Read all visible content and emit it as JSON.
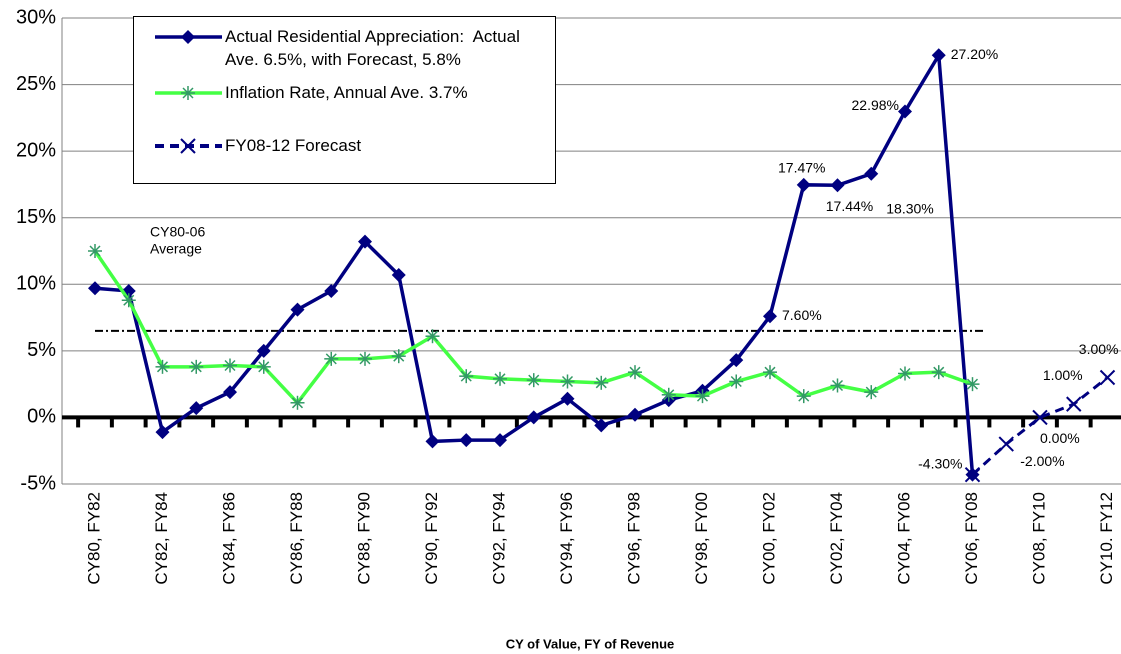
{
  "chart_data": {
    "type": "line",
    "x_label": "CY of Value, FY of Revenue",
    "categories": [
      "CY80, FY82",
      null,
      "CY82, FY84",
      null,
      "CY84, FY86",
      null,
      "CY86, FY88",
      null,
      "CY88, FY90",
      null,
      "CY90, FY92",
      null,
      "CY92, FY94",
      null,
      "CY94, FY96",
      null,
      "CY96, FY98",
      null,
      "CY98, FY00",
      null,
      "CY00, FY02",
      null,
      "CY02, FY04",
      null,
      "CY04, FY06",
      null,
      "CY06, FY08",
      null,
      "CY08, FY10",
      null,
      "CY10. FY12"
    ],
    "series": [
      {
        "name": "Actual Residential Appreciation:  Actual Ave. 6.5%, with Forecast, 5.8%",
        "color": "#000080",
        "marker": "diamond",
        "values": [
          9.7,
          9.5,
          -1.1,
          0.7,
          1.9,
          5.0,
          8.1,
          9.5,
          13.2,
          10.7,
          -1.8,
          -1.7,
          -1.7,
          0.0,
          1.4,
          -0.6,
          0.2,
          1.3,
          2.0,
          4.3,
          7.6,
          17.47,
          17.44,
          18.3,
          22.98,
          27.2,
          -4.3,
          null,
          null,
          null,
          null
        ],
        "value_labels": [
          null,
          null,
          null,
          null,
          null,
          null,
          null,
          null,
          null,
          null,
          null,
          null,
          null,
          null,
          null,
          null,
          null,
          null,
          null,
          null,
          "7.60%",
          "17.47%",
          "17.44%",
          "18.30%",
          "22.98%",
          "27.20%",
          "-4.30%",
          null,
          null,
          null,
          null
        ]
      },
      {
        "name": "Inflation Rate, Annual Ave. 3.7%",
        "color": "#44ff44",
        "marker_color": "#339966",
        "marker": "asterisk",
        "values": [
          12.5,
          8.8,
          3.8,
          3.8,
          3.9,
          3.8,
          1.1,
          4.4,
          4.4,
          4.6,
          6.1,
          3.1,
          2.9,
          2.8,
          2.7,
          2.6,
          3.4,
          1.7,
          1.6,
          2.7,
          3.4,
          1.6,
          2.4,
          1.9,
          3.3,
          3.4,
          2.5,
          null,
          null,
          null,
          null
        ]
      },
      {
        "name": "FY08-12 Forecast",
        "color": "#000080",
        "marker": "x",
        "dashed": true,
        "values": [
          null,
          null,
          null,
          null,
          null,
          null,
          null,
          null,
          null,
          null,
          null,
          null,
          null,
          null,
          null,
          null,
          null,
          null,
          null,
          null,
          null,
          null,
          null,
          null,
          null,
          null,
          -4.3,
          -2.0,
          0.0,
          1.0,
          3.0
        ],
        "value_labels": [
          null,
          null,
          null,
          null,
          null,
          null,
          null,
          null,
          null,
          null,
          null,
          null,
          null,
          null,
          null,
          null,
          null,
          null,
          null,
          null,
          null,
          null,
          null,
          null,
          null,
          null,
          null,
          "-2.00%",
          "0.00%",
          "1.00%",
          "3.00%"
        ]
      }
    ],
    "ylim": [
      -5,
      30
    ],
    "yticks": [
      {
        "value": -5,
        "label": "-5%"
      },
      {
        "value": 0,
        "label": "0%"
      },
      {
        "value": 5,
        "label": "5%"
      },
      {
        "value": 10,
        "label": "10%"
      },
      {
        "value": 15,
        "label": "15%"
      },
      {
        "value": 20,
        "label": "20%"
      },
      {
        "value": 25,
        "label": "25%"
      },
      {
        "value": 30,
        "label": "30%"
      }
    ],
    "grid": true,
    "average": {
      "value": 6.5,
      "text": [
        "CY80-06",
        "Average"
      ]
    }
  }
}
